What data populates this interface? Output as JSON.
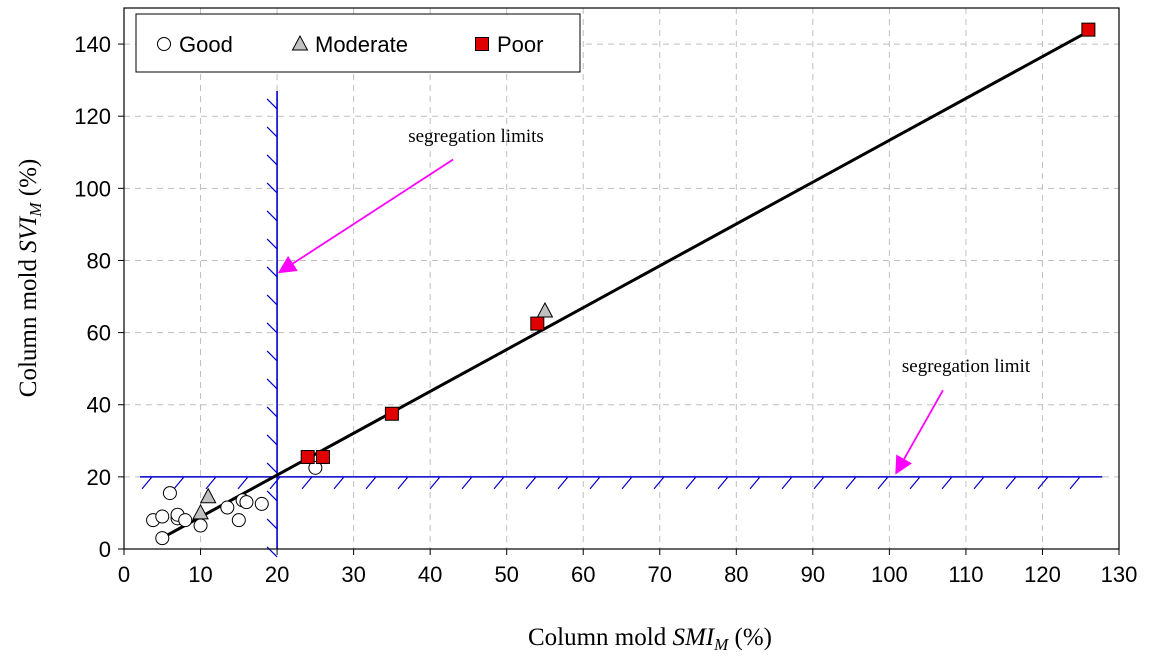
{
  "chart_data": {
    "type": "scatter",
    "xlabel": {
      "prefix": "Column mold ",
      "var": "SMI",
      "sub": "M",
      "suffix": " (%)"
    },
    "ylabel": {
      "prefix": "Column mold ",
      "var": "SVI",
      "sub": "M",
      "suffix": " (%)"
    },
    "xlim": [
      0,
      130
    ],
    "ylim": [
      0,
      150
    ],
    "x_ticks": [
      "0",
      "10",
      "20",
      "30",
      "40",
      "50",
      "60",
      "70",
      "80",
      "90",
      "100",
      "110",
      "120",
      "130"
    ],
    "y_ticks": [
      "0",
      "20",
      "40",
      "60",
      "80",
      "100",
      "120",
      "140"
    ],
    "grid": true,
    "legend_position": "top-left",
    "series": [
      {
        "name": "Good",
        "marker": "circle",
        "color": "#ffffff",
        "points": [
          [
            3.8,
            8
          ],
          [
            5,
            9
          ],
          [
            5,
            3
          ],
          [
            6,
            15.5
          ],
          [
            7,
            8.5
          ],
          [
            7,
            9.5
          ],
          [
            8,
            8
          ],
          [
            10,
            6.5
          ],
          [
            13.5,
            11.5
          ],
          [
            15,
            8
          ],
          [
            15.5,
            13.5
          ],
          [
            16,
            13
          ],
          [
            18,
            12.5
          ],
          [
            25,
            22.5
          ]
        ]
      },
      {
        "name": "Moderate",
        "marker": "triangle",
        "color": "#c0c0c0",
        "points": [
          [
            10,
            10
          ],
          [
            11,
            14.5
          ],
          [
            55,
            66
          ]
        ]
      },
      {
        "name": "Poor",
        "marker": "square",
        "color": "#e00000",
        "points": [
          [
            24,
            25.5
          ],
          [
            26,
            25.5
          ],
          [
            35,
            37.5
          ],
          [
            54,
            62.5
          ],
          [
            126,
            144
          ]
        ]
      }
    ],
    "trendline": {
      "x": [
        4.5,
        126
      ],
      "y": [
        2.5,
        143.5
      ],
      "color": "#000000"
    },
    "segregation_lines": [
      {
        "orientation": "vertical",
        "value": 20,
        "from": 0,
        "to": 127,
        "color": "#0000cc"
      },
      {
        "orientation": "horizontal",
        "value": 20,
        "from": 0,
        "to": 126,
        "color": "#0000cc"
      }
    ],
    "annotations": [
      {
        "text": "segregation limits",
        "arrow_from": [
          43,
          108
        ],
        "arrow_to": [
          20.5,
          77
        ],
        "color": "#ff00ff"
      },
      {
        "text": "segregation limit",
        "arrow_from": [
          107,
          44
        ],
        "arrow_to": [
          101,
          21.5
        ],
        "color": "#ff00ff"
      }
    ]
  }
}
